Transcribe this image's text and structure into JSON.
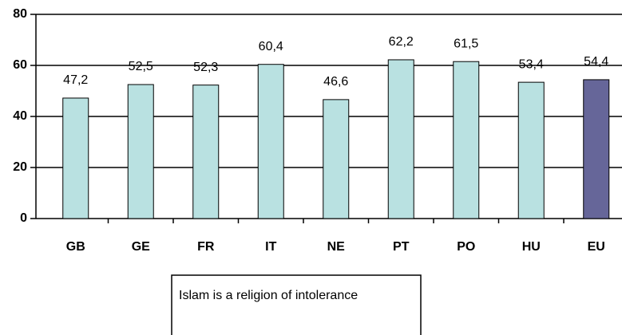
{
  "chart_data": {
    "type": "bar",
    "categories": [
      "GB",
      "GE",
      "FR",
      "IT",
      "NE",
      "PT",
      "PO",
      "HU",
      "EU"
    ],
    "values": [
      47.2,
      52.5,
      52.3,
      60.4,
      46.6,
      62.2,
      61.5,
      53.4,
      54.4
    ],
    "value_labels": [
      "47,2",
      "52,5",
      "52,3",
      "60,4",
      "46,6",
      "62,2",
      "61,5",
      "53,4",
      "54,4"
    ],
    "colors": [
      "#b9e1e1",
      "#b9e1e1",
      "#b9e1e1",
      "#b9e1e1",
      "#b9e1e1",
      "#b9e1e1",
      "#b9e1e1",
      "#b9e1e1",
      "#666699"
    ],
    "legend": "Islam is a religion of intolerance",
    "ylim": [
      0,
      80
    ],
    "yticks": [
      0,
      20,
      40,
      60,
      80
    ],
    "grid": true
  }
}
